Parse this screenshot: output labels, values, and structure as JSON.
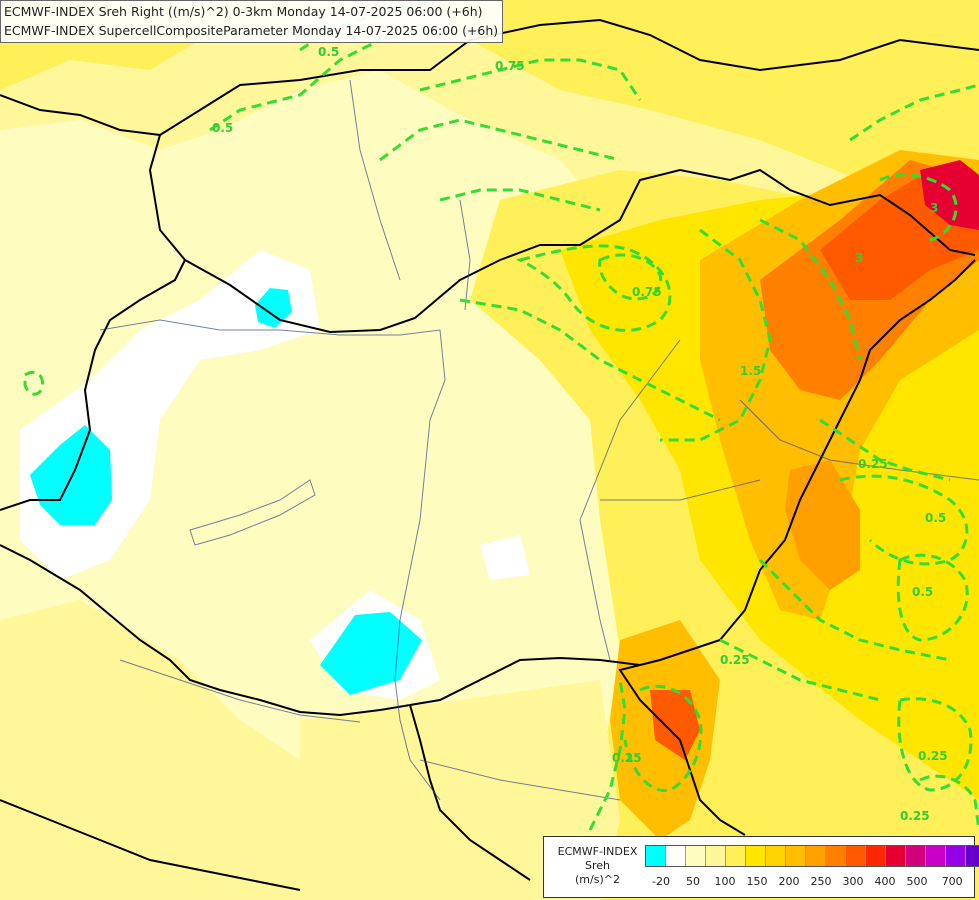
{
  "header": {
    "line1": "ECMWF-INDEX Sreh Right ((m/s)^2) 0-3km Monday 14-07-2025 06:00 (+6h)",
    "line2": "ECMWF-INDEX SupercellCompositeParameter Monday 14-07-2025 06:00 (+6h)"
  },
  "legend": {
    "line1": "ECMWF-INDEX",
    "line2": "Sreh",
    "line3": "(m/s)^2",
    "ticks": [
      "-20",
      "50",
      "100",
      "150",
      "200",
      "250",
      "300",
      "400",
      "500",
      "700"
    ],
    "colors": [
      "#00ffff",
      "#ffffff",
      "#fffcc0",
      "#fff79a",
      "#fff05a",
      "#ffe600",
      "#ffd200",
      "#ffbe00",
      "#ffa000",
      "#ff8000",
      "#ff5a00",
      "#ff2800",
      "#e60032",
      "#d2007d",
      "#c800c8",
      "#9600e6",
      "#6400c8",
      "#3c00a0",
      "#000080"
    ]
  },
  "contours": {
    "color": "#33cc33",
    "labels": [
      "0.5",
      "0.75",
      "0.5",
      "0.75",
      "1.5",
      "3",
      "3",
      "0.25",
      "0.5",
      "0.5",
      "0.25",
      "0.25",
      "0.25",
      "0.25"
    ]
  }
}
